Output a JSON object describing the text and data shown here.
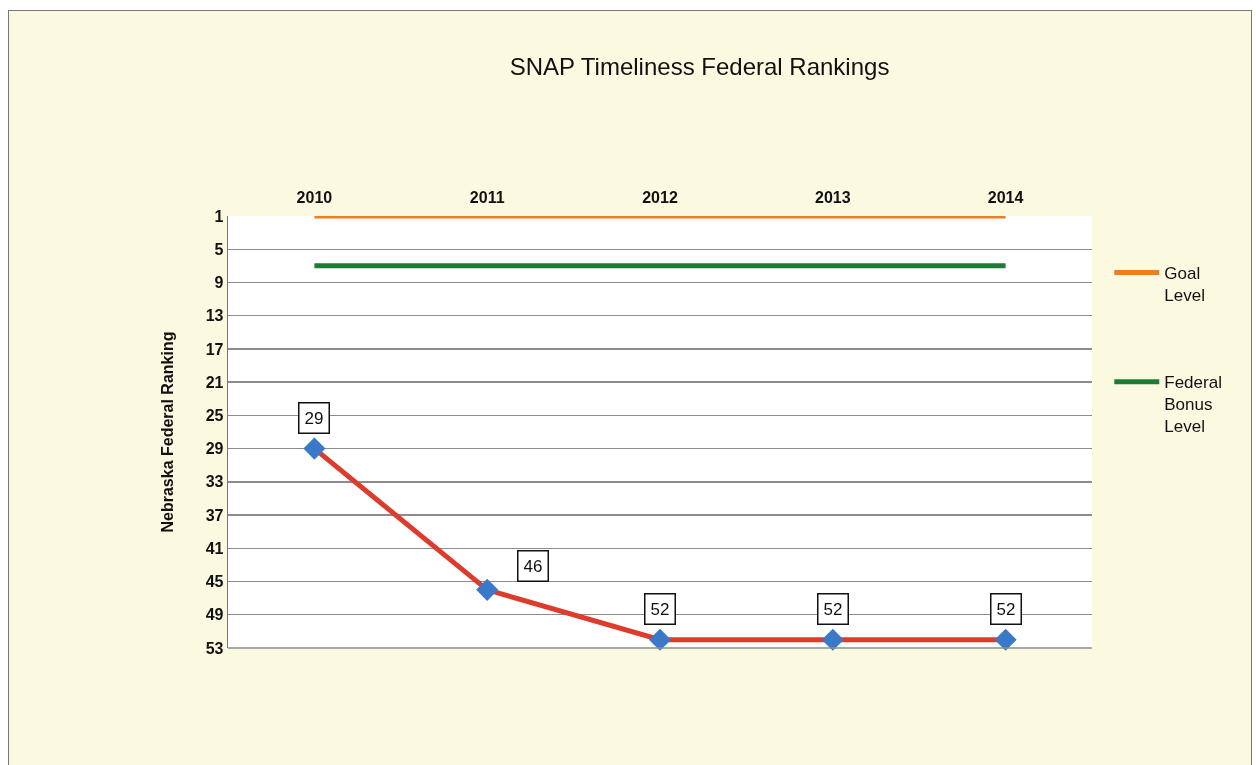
{
  "chart_data": {
    "type": "line",
    "title": "SNAP Timeliness Federal Rankings",
    "ylabel": "Nebraska Federal Ranking",
    "categories": [
      "2010",
      "2011",
      "2012",
      "2013",
      "2014"
    ],
    "series": [
      {
        "name": "Goal Level",
        "color": "#f07d1f",
        "values": [
          1,
          1,
          1,
          1,
          1
        ],
        "marker": "none"
      },
      {
        "name": "Federal Bonus Level",
        "color": "#1d7c33",
        "values": [
          7,
          7,
          7,
          7,
          7
        ],
        "marker": "none"
      },
      {
        "color": "#dd3b2b",
        "colors": [
          "#3b78c9",
          "#3b78c9",
          "#3b78c9",
          "#3b78c9",
          "#3b78c9"
        ],
        "values": [
          29,
          46,
          52,
          52,
          52
        ],
        "marker": "diamond",
        "data_labels": true
      }
    ],
    "ylim": [
      53,
      1
    ],
    "yticks": [
      1,
      5,
      9,
      13,
      17,
      21,
      25,
      29,
      33,
      37,
      41,
      45,
      49,
      53
    ],
    "grid": "y",
    "legend": "right"
  }
}
